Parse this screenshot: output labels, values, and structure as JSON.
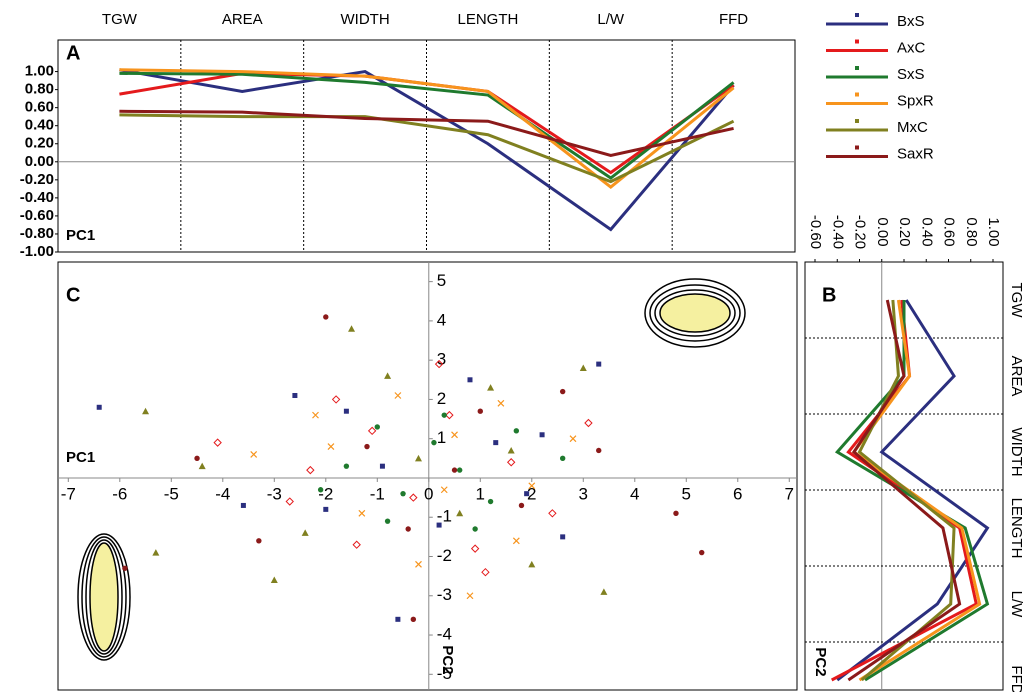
{
  "chart_data": [
    {
      "type": "line",
      "panel": "A",
      "ylabel": "PC1",
      "categories": [
        "TGW",
        "AREA",
        "WIDTH",
        "LENGTH",
        "L/W",
        "FFD"
      ],
      "ylim": [
        -1.0,
        1.35
      ],
      "yticks": [
        {
          "value": -1,
          "label": "-1.00"
        },
        {
          "value": -0.8,
          "label": "-0.80"
        },
        {
          "value": -0.6,
          "label": "-0.60"
        },
        {
          "value": -0.4,
          "label": "-0.40"
        },
        {
          "value": -0.2,
          "label": "-0.20"
        },
        {
          "value": 0,
          "label": "0.00"
        },
        {
          "value": 0.2,
          "label": "0.20"
        },
        {
          "value": 0.4,
          "label": "0.40"
        },
        {
          "value": 0.6,
          "label": "0.60"
        },
        {
          "value": 0.8,
          "label": "0.80"
        },
        {
          "value": 1,
          "label": "1.00"
        }
      ],
      "series": [
        {
          "name": "BxS",
          "color": "#2b2f7f",
          "values": [
            1.02,
            0.78,
            1.0,
            0.2,
            -0.75,
            0.85
          ]
        },
        {
          "name": "AxC",
          "color": "#e41a1c",
          "values": [
            0.75,
            0.98,
            0.95,
            0.78,
            -0.12,
            0.85
          ]
        },
        {
          "name": "SxS",
          "color": "#1f7a2e",
          "values": [
            0.98,
            0.97,
            0.88,
            0.74,
            -0.18,
            0.88
          ]
        },
        {
          "name": "SpxR",
          "color": "#f7941d",
          "values": [
            1.02,
            1.0,
            0.95,
            0.78,
            -0.28,
            0.82
          ]
        },
        {
          "name": "MxC",
          "color": "#808020",
          "values": [
            0.52,
            0.5,
            0.5,
            0.3,
            -0.22,
            0.45
          ]
        },
        {
          "name": "SaxR",
          "color": "#8b1a1a",
          "values": [
            0.56,
            0.55,
            0.48,
            0.45,
            0.07,
            0.37
          ]
        }
      ]
    },
    {
      "type": "hline",
      "panel": "B",
      "xlabel": "PC2",
      "categories": [
        "TGW",
        "AREA",
        "WIDTH",
        "LENGTH",
        "L/W",
        "FFD"
      ],
      "xlim": [
        -0.69,
        1.09
      ],
      "xticks": [
        {
          "value": -0.6,
          "label": "-0.60"
        },
        {
          "value": -0.4,
          "label": "-0.40"
        },
        {
          "value": -0.2,
          "label": "-0.20"
        },
        {
          "value": 0,
          "label": "0.00"
        },
        {
          "value": 0.2,
          "label": "0.20"
        },
        {
          "value": 0.4,
          "label": "0.40"
        },
        {
          "value": 0.6,
          "label": "0.60"
        },
        {
          "value": 0.8,
          "label": "0.80"
        },
        {
          "value": 1,
          "label": "1.00"
        }
      ],
      "series": [
        {
          "color": "#2b2f7f",
          "values": [
            0.22,
            0.65,
            0.0,
            0.95,
            0.5,
            -0.4
          ]
        },
        {
          "color": "#e41a1c",
          "values": [
            0.18,
            0.25,
            -0.3,
            0.7,
            0.85,
            -0.45
          ]
        },
        {
          "color": "#1f7a2e",
          "values": [
            0.2,
            0.2,
            -0.4,
            0.75,
            0.95,
            -0.15
          ]
        },
        {
          "color": "#f7941d",
          "values": [
            0.15,
            0.25,
            -0.25,
            0.72,
            0.88,
            -0.2
          ]
        },
        {
          "color": "#808020",
          "values": [
            0.1,
            0.15,
            -0.2,
            0.65,
            0.62,
            -0.18
          ]
        },
        {
          "color": "#8b1a1a",
          "values": [
            0.05,
            0.2,
            -0.25,
            0.55,
            0.7,
            -0.3
          ]
        }
      ]
    },
    {
      "type": "scatter",
      "panel": "C",
      "xlabel": "PC1",
      "ylabel": "PC2",
      "xlim": [
        -7.2,
        7.15
      ],
      "ylim": [
        -5.4,
        5.5
      ],
      "xticks": [
        -7,
        -6,
        -5,
        -4,
        -3,
        -2,
        -1,
        0,
        1,
        2,
        3,
        4,
        5,
        6,
        7
      ],
      "yticks": [
        -5,
        -4,
        -3,
        -2,
        -1,
        1,
        2,
        3,
        4,
        5
      ],
      "series": [
        {
          "color": "#2b2f7f",
          "marker": "square",
          "x": [
            -6.4,
            -2.6,
            -3.6,
            -1.6,
            -0.9,
            0.2,
            0.8,
            1.3,
            2.2,
            3.3,
            -0.6,
            2.6,
            1.9,
            -2.0
          ],
          "values": [
            1.8,
            2.1,
            -0.7,
            1.7,
            0.3,
            -1.2,
            2.5,
            0.9,
            1.1,
            2.9,
            -3.6,
            -1.5,
            -0.4,
            -0.8
          ]
        },
        {
          "color": "#e41a1c",
          "marker": "diamond",
          "x": [
            -4.1,
            -2.7,
            -1.8,
            -1.1,
            -0.3,
            0.4,
            0.9,
            1.6,
            2.4,
            3.1,
            -1.4,
            0.2,
            1.1,
            -2.3
          ],
          "values": [
            0.9,
            -0.6,
            2.0,
            1.2,
            -0.5,
            1.6,
            -1.8,
            0.4,
            -0.9,
            1.4,
            -1.7,
            2.9,
            -2.4,
            0.2
          ]
        },
        {
          "color": "#1f7a2e",
          "marker": "circle",
          "x": [
            -1.6,
            -1.0,
            -0.5,
            0.1,
            0.6,
            1.2,
            -0.8,
            0.3,
            1.7,
            -2.1,
            0.9,
            2.6
          ],
          "values": [
            0.3,
            1.3,
            -0.4,
            0.9,
            0.2,
            -0.6,
            -1.1,
            1.6,
            1.2,
            -0.3,
            -1.3,
            0.5
          ]
        },
        {
          "color": "#f7941d",
          "marker": "cross",
          "x": [
            -3.4,
            -2.2,
            -1.3,
            -0.6,
            0.3,
            0.8,
            1.4,
            2.0,
            2.8,
            -1.9,
            0.5,
            1.7,
            -0.2
          ],
          "values": [
            0.6,
            1.6,
            -0.9,
            2.1,
            -0.3,
            -3.0,
            1.9,
            -0.2,
            1.0,
            0.8,
            1.1,
            -1.6,
            -2.2
          ]
        },
        {
          "color": "#808020",
          "marker": "triangle",
          "x": [
            -5.5,
            -5.3,
            -3.0,
            -1.5,
            -0.8,
            -0.2,
            0.6,
            1.2,
            2.0,
            3.0,
            -2.4,
            1.6,
            3.4,
            -4.4
          ],
          "values": [
            1.7,
            -1.9,
            -2.6,
            3.8,
            2.6,
            0.5,
            -0.9,
            2.3,
            -2.2,
            2.8,
            -1.4,
            0.7,
            -2.9,
            0.3
          ]
        },
        {
          "color": "#8b1a1a",
          "marker": "circle",
          "x": [
            -5.9,
            -4.5,
            -3.3,
            -2.0,
            -1.2,
            -0.4,
            0.5,
            1.0,
            1.8,
            2.6,
            3.3,
            4.8,
            5.3,
            -0.3
          ],
          "values": [
            -2.3,
            0.5,
            -1.6,
            4.1,
            0.8,
            -1.3,
            0.2,
            1.7,
            -0.7,
            2.2,
            0.7,
            -0.9,
            -1.9,
            -3.6
          ]
        }
      ]
    }
  ]
}
